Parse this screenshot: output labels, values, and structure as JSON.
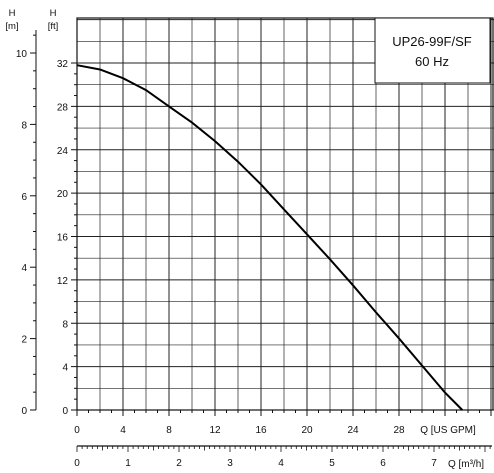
{
  "chart_data": {
    "type": "line",
    "title": "",
    "legend": {
      "model": "UP26-99F/SF",
      "frequency": "60 Hz"
    },
    "axes": {
      "head_m": {
        "name": "H",
        "unit": "[m]",
        "ticks": [
          "0",
          "2",
          "4",
          "6",
          "8",
          "10"
        ],
        "range": [
          0,
          10.0
        ]
      },
      "head_ft": {
        "name": "H",
        "unit": "[ft]",
        "ticks": [
          "0",
          "4",
          "8",
          "12",
          "16",
          "20",
          "24",
          "28",
          "32"
        ],
        "range": [
          0,
          32
        ]
      },
      "flow_gpm": {
        "unit": "Q [US GPM]",
        "ticks": [
          "0",
          "4",
          "8",
          "12",
          "16",
          "20",
          "24",
          "28"
        ],
        "range": [
          0,
          38
        ]
      },
      "flow_m3h": {
        "unit": "Q [m³/h]",
        "ticks": [
          "0",
          "1",
          "2",
          "3",
          "4",
          "5",
          "6",
          "7"
        ],
        "range": [
          0,
          8.6
        ]
      }
    },
    "grid": true,
    "series": [
      {
        "x_unit": "US GPM",
        "y_unit": "ft",
        "points": [
          [
            0,
            31.8
          ],
          [
            2,
            31.4
          ],
          [
            4,
            30.6
          ],
          [
            6,
            29.5
          ],
          [
            8,
            28.0
          ],
          [
            10,
            26.5
          ],
          [
            12,
            24.8
          ],
          [
            14,
            22.9
          ],
          [
            16,
            20.8
          ],
          [
            18,
            18.5
          ],
          [
            20,
            16.2
          ],
          [
            22,
            13.9
          ],
          [
            24,
            11.5
          ],
          [
            26,
            9.0
          ],
          [
            28,
            6.6
          ],
          [
            30,
            4.1
          ],
          [
            32,
            1.6
          ],
          [
            33.5,
            0
          ]
        ]
      }
    ]
  }
}
